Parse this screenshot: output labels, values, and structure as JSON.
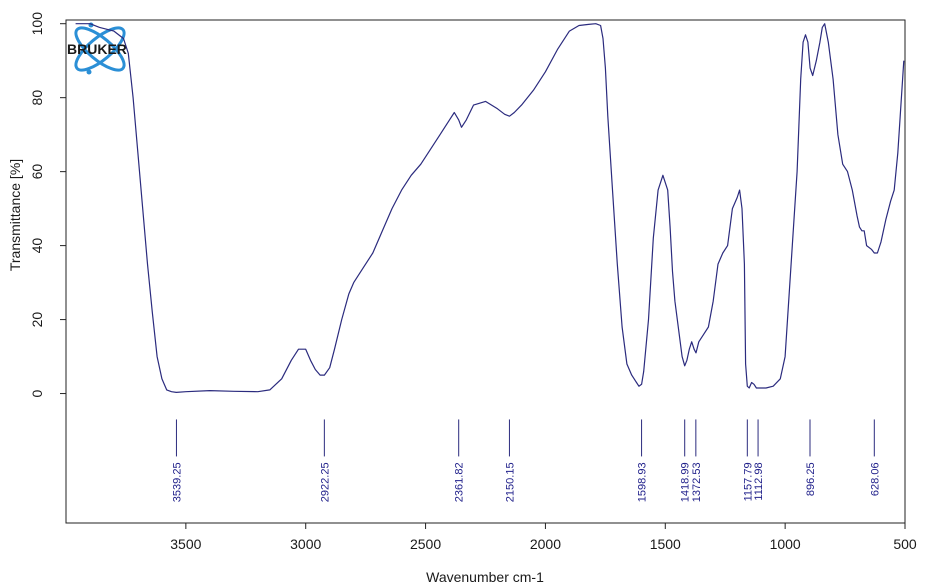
{
  "chart_data": {
    "type": "line",
    "title": "",
    "xlabel": "Wavenumber cm-1",
    "ylabel": "Transmittance [%]",
    "xlim": [
      4000,
      500
    ],
    "ylim": [
      -35,
      101
    ],
    "x_reversed": true,
    "grid": false,
    "legend": "none",
    "xticks": [
      3500,
      3000,
      2500,
      2000,
      1500,
      1000,
      500
    ],
    "yticks": [
      0,
      20,
      40,
      60,
      80,
      100
    ],
    "series": [
      {
        "color": "#2b2b7e",
        "x": [
          3960,
          3900,
          3860,
          3800,
          3760,
          3740,
          3720,
          3700,
          3680,
          3660,
          3640,
          3620,
          3600,
          3580,
          3560,
          3540,
          3500,
          3400,
          3300,
          3200,
          3150,
          3100,
          3060,
          3030,
          3000,
          2980,
          2960,
          2940,
          2922,
          2900,
          2880,
          2850,
          2820,
          2800,
          2760,
          2720,
          2680,
          2640,
          2600,
          2560,
          2520,
          2480,
          2440,
          2400,
          2380,
          2362,
          2350,
          2330,
          2300,
          2250,
          2200,
          2170,
          2150,
          2130,
          2100,
          2050,
          2000,
          1950,
          1900,
          1860,
          1820,
          1790,
          1770,
          1760,
          1750,
          1740,
          1720,
          1700,
          1680,
          1660,
          1640,
          1620,
          1610,
          1599,
          1590,
          1570,
          1550,
          1530,
          1510,
          1490,
          1480,
          1470,
          1460,
          1450,
          1440,
          1430,
          1419,
          1410,
          1400,
          1390,
          1380,
          1372,
          1360,
          1340,
          1320,
          1300,
          1280,
          1260,
          1240,
          1220,
          1200,
          1190,
          1180,
          1170,
          1165,
          1158,
          1150,
          1140,
          1130,
          1120,
          1113,
          1100,
          1080,
          1050,
          1020,
          1000,
          990,
          970,
          950,
          935,
          925,
          915,
          905,
          896,
          885,
          870,
          855,
          845,
          835,
          820,
          800,
          780,
          760,
          740,
          720,
          700,
          690,
          680,
          670,
          660,
          640,
          628,
          615,
          600,
          580,
          560,
          545,
          530,
          520,
          510,
          505
        ],
        "y": [
          100,
          100,
          99,
          98,
          96,
          92,
          80,
          65,
          50,
          35,
          22,
          10,
          4,
          1,
          0.5,
          0.3,
          0.5,
          0.8,
          0.6,
          0.5,
          1,
          4,
          9,
          12,
          12,
          9,
          6.5,
          5,
          5,
          7,
          12,
          20,
          27,
          30,
          34,
          38,
          44,
          50,
          55,
          59,
          62,
          66,
          70,
          74,
          76,
          74,
          72,
          74,
          78,
          79,
          77,
          75.5,
          75,
          76,
          78,
          82,
          87,
          93,
          98,
          99.5,
          99.8,
          100,
          99.5,
          96,
          88,
          75,
          55,
          35,
          18,
          8,
          5,
          3,
          2,
          2.5,
          6,
          20,
          42,
          55,
          59,
          55,
          45,
          33,
          25,
          20,
          15,
          10,
          7.5,
          9,
          12,
          14,
          12,
          11,
          14,
          16,
          18,
          25,
          35,
          38,
          40,
          50,
          53,
          55,
          50,
          35,
          8,
          2,
          1.5,
          3,
          2.5,
          1.5,
          1.5,
          1.5,
          1.5,
          2,
          4,
          10,
          20,
          40,
          60,
          85,
          95,
          97,
          95,
          88,
          86,
          90,
          95,
          99,
          100,
          95,
          85,
          70,
          62,
          60,
          55,
          48,
          45,
          44,
          44,
          40,
          39,
          38,
          38,
          41,
          47,
          52,
          55,
          65,
          75,
          85,
          90
        ]
      }
    ],
    "peak_labels": [
      {
        "x": 3539.25,
        "label": "3539.25"
      },
      {
        "x": 2922.25,
        "label": "2922.25"
      },
      {
        "x": 2361.82,
        "label": "2361.82"
      },
      {
        "x": 2150.15,
        "label": "2150.15"
      },
      {
        "x": 1598.93,
        "label": "1598.93"
      },
      {
        "x": 1418.99,
        "label": "1418.99"
      },
      {
        "x": 1372.53,
        "label": "1372.53"
      },
      {
        "x": 1157.79,
        "label": "1157.79"
      },
      {
        "x": 1112.98,
        "label": "1112.98"
      },
      {
        "x": 896.25,
        "label": "896.25"
      },
      {
        "x": 628.06,
        "label": "628.06"
      }
    ],
    "peak_marker_range": [
      -7,
      -17
    ],
    "logo": {
      "text": "BRUKER",
      "colors": {
        "ring": "#2b8fd6",
        "text": "#1a1a1a"
      }
    }
  }
}
